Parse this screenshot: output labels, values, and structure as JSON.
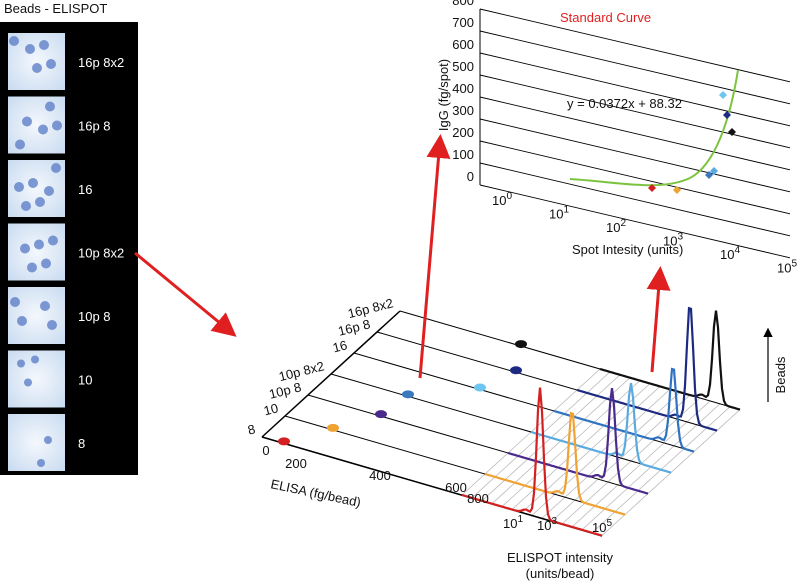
{
  "beads_panel": {
    "title": "Beads - ELISPOT",
    "labels": [
      "16p 8x2",
      "16p 8",
      "16",
      "10p 8x2",
      "10p 8",
      "10",
      "8"
    ]
  },
  "main_plot": {
    "row_labels": [
      "16p 8x2",
      "16p 8",
      "16",
      "10p 8x2",
      "10p 8",
      "10",
      "8"
    ],
    "elisa_axis": {
      "label": "ELISA (fg/bead)",
      "ticks": [
        "0",
        "200",
        "400",
        "600",
        "800"
      ]
    },
    "elispot_axis": {
      "label_lines": [
        "ELISPOT intensity",
        "(units/bead)"
      ],
      "ticks": [
        {
          "base": "10",
          "exponent": "1"
        },
        {
          "base": "10",
          "exponent": "3"
        },
        {
          "base": "10",
          "exponent": "5"
        }
      ]
    },
    "beads_axis": "Beads"
  },
  "standard_curve": {
    "title": "Standard Curve",
    "y_label": "IgG (fg/spot)",
    "yticks": [
      "0",
      "100",
      "200",
      "300",
      "400",
      "500",
      "600",
      "700",
      "800"
    ],
    "x_label": "Spot Intesity (units)",
    "xticks": [
      {
        "base": "10",
        "exponent": "0"
      },
      {
        "base": "10",
        "exponent": "1"
      },
      {
        "base": "10",
        "exponent": "2"
      },
      {
        "base": "10",
        "exponent": "3"
      },
      {
        "base": "10",
        "exponent": "4"
      },
      {
        "base": "10",
        "exponent": "5"
      }
    ],
    "equation": "y = 0.0372x + 88.32"
  }
}
